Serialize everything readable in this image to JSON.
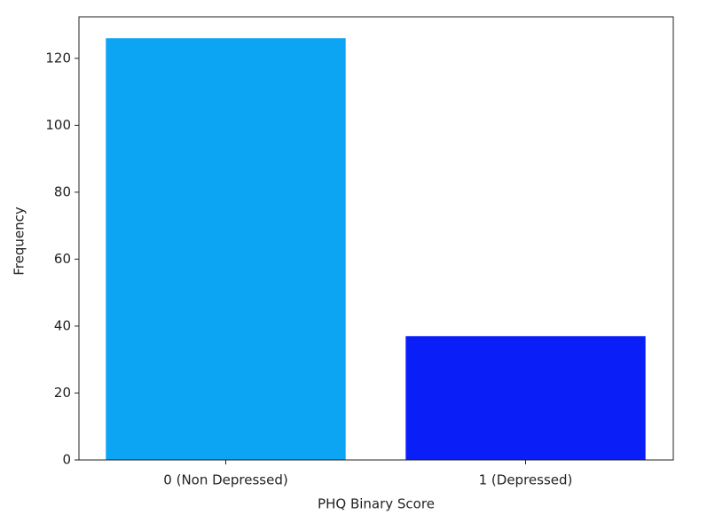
{
  "chart_data": {
    "type": "bar",
    "xlabel": "PHQ Binary Score",
    "ylabel": "Frequency",
    "categories": [
      "0 (Non Depressed)",
      "1 (Depressed)"
    ],
    "values": [
      126,
      37
    ],
    "colors": [
      "#0ca5f3",
      "#0a1ef7"
    ],
    "ylim": [
      0,
      132.4
    ],
    "yticks": [
      0,
      20,
      40,
      60,
      80,
      100,
      120
    ],
    "grid": false
  }
}
